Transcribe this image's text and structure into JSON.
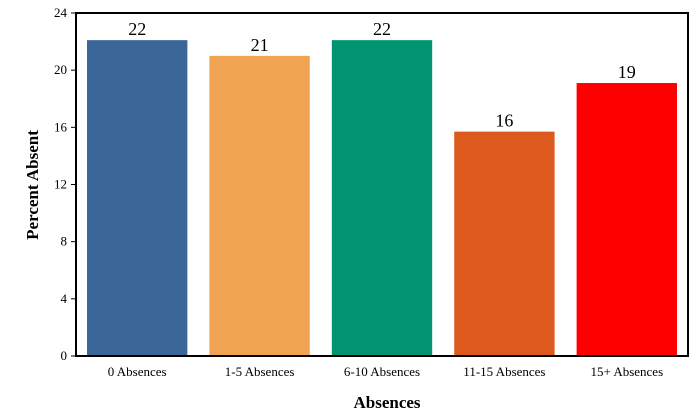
{
  "chart_data": {
    "type": "bar",
    "title": "",
    "xlabel": "Absences",
    "ylabel": "Percent Absent",
    "categories": [
      "0 Absences",
      "1-5 Absences",
      "6-10 Absences",
      "11-15 Absences",
      "15+ Absences"
    ],
    "values": [
      22.1,
      21.0,
      22.1,
      15.7,
      19.1
    ],
    "data_labels": [
      "22",
      "21",
      "22",
      "16",
      "19"
    ],
    "colors": [
      "#3b6698",
      "#f0a452",
      "#009470",
      "#dc5a1e",
      "#ff0000"
    ],
    "ylim": [
      0,
      24
    ],
    "yticks": [
      0,
      4,
      8,
      12,
      16,
      20,
      24
    ],
    "grid": false,
    "legend": "none"
  }
}
